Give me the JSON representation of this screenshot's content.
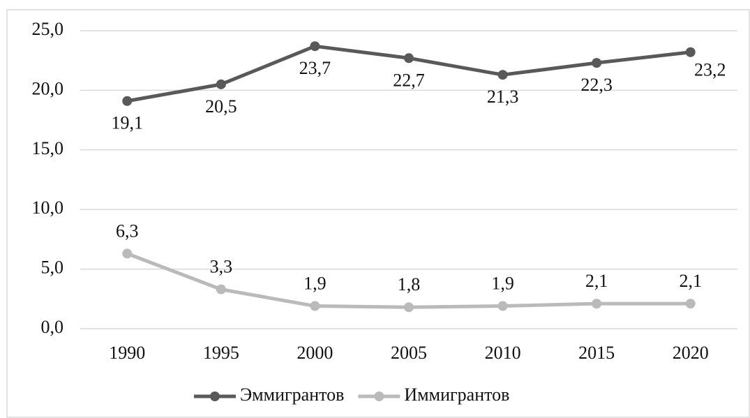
{
  "chart_data": {
    "type": "line",
    "categories": [
      "1990",
      "1995",
      "2000",
      "2005",
      "2010",
      "2015",
      "2020"
    ],
    "series": [
      {
        "name": "Эммигрантов",
        "color": "#595959",
        "values": [
          19.1,
          20.5,
          23.7,
          22.7,
          21.3,
          22.3,
          23.2
        ],
        "value_labels": [
          "19,1",
          "20,5",
          "23,7",
          "22,7",
          "21,3",
          "22,3",
          "23,2"
        ]
      },
      {
        "name": "Иммигрантов",
        "color": "#bababa",
        "values": [
          6.3,
          3.3,
          1.9,
          1.8,
          1.9,
          2.1,
          2.1
        ],
        "value_labels": [
          "6,3",
          "3,3",
          "1,9",
          "1,8",
          "1,9",
          "2,1",
          "2,1"
        ]
      }
    ],
    "ylim": [
      0,
      25
    ],
    "yticks": [
      {
        "value": 0,
        "label": "0,0"
      },
      {
        "value": 5,
        "label": "5,0"
      },
      {
        "value": 10,
        "label": "10,0"
      },
      {
        "value": 15,
        "label": "15,0"
      },
      {
        "value": 20,
        "label": "20,0"
      },
      {
        "value": 25,
        "label": "25,0"
      }
    ],
    "grid": true,
    "legend": "bottom"
  }
}
